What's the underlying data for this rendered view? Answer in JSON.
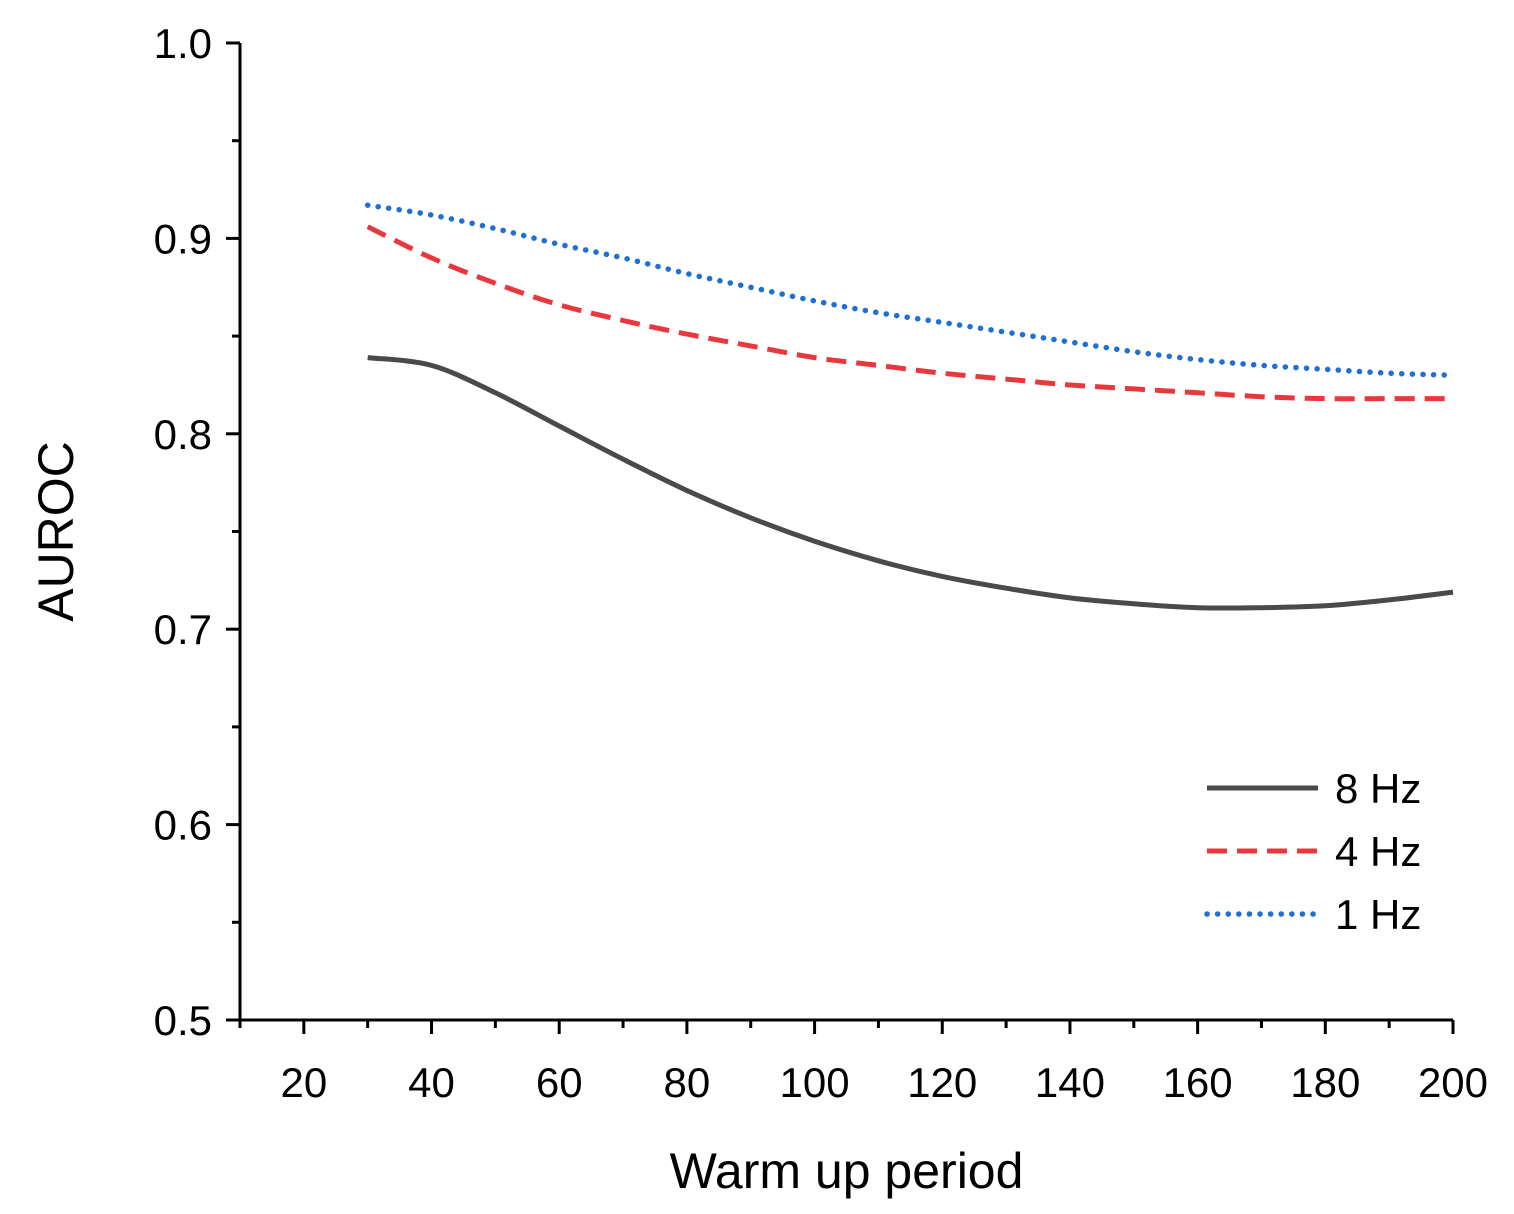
{
  "chart_data": {
    "type": "line",
    "title": "",
    "xlabel": "Warm up period",
    "ylabel": "AUROC",
    "xlim": [
      10,
      200
    ],
    "ylim": [
      0.5,
      1.0
    ],
    "x_major_ticks": [
      20,
      40,
      60,
      80,
      100,
      120,
      140,
      160,
      180,
      200
    ],
    "x_major_tick_labels": [
      "20",
      "40",
      "60",
      "80",
      "100",
      "120",
      "140",
      "160",
      "180",
      "200"
    ],
    "x_minor_ticks": [
      10,
      30,
      50,
      70,
      90,
      110,
      130,
      150,
      170,
      190
    ],
    "y_major_ticks": [
      0.5,
      0.6,
      0.7,
      0.8,
      0.9,
      1.0
    ],
    "y_major_tick_labels": [
      "0.5",
      "0.6",
      "0.7",
      "0.8",
      "0.9",
      "1.0"
    ],
    "y_minor_ticks": [
      0.55,
      0.65,
      0.75,
      0.85,
      0.95
    ],
    "grid": false,
    "legend_position": "bottom-right",
    "x": [
      30,
      40,
      50,
      60,
      70,
      80,
      90,
      100,
      110,
      120,
      130,
      140,
      150,
      160,
      170,
      180,
      190,
      200
    ],
    "series": [
      {
        "name": "8 Hz",
        "color": "#4a4a4a",
        "dash": "solid",
        "values": [
          0.839,
          0.835,
          0.821,
          0.804,
          0.787,
          0.771,
          0.757,
          0.745,
          0.735,
          0.727,
          0.721,
          0.716,
          0.713,
          0.711,
          0.711,
          0.712,
          0.715,
          0.719
        ]
      },
      {
        "name": "4 Hz",
        "color": "#e8383d",
        "dash": "dashed",
        "values": [
          0.906,
          0.89,
          0.877,
          0.866,
          0.858,
          0.851,
          0.845,
          0.839,
          0.835,
          0.831,
          0.828,
          0.825,
          0.823,
          0.821,
          0.819,
          0.818,
          0.818,
          0.818
        ]
      },
      {
        "name": "1 Hz",
        "color": "#1f6fd6",
        "dash": "dotted",
        "values": [
          0.917,
          0.912,
          0.905,
          0.897,
          0.89,
          0.882,
          0.875,
          0.868,
          0.862,
          0.857,
          0.852,
          0.847,
          0.842,
          0.838,
          0.835,
          0.833,
          0.831,
          0.83
        ]
      }
    ]
  }
}
